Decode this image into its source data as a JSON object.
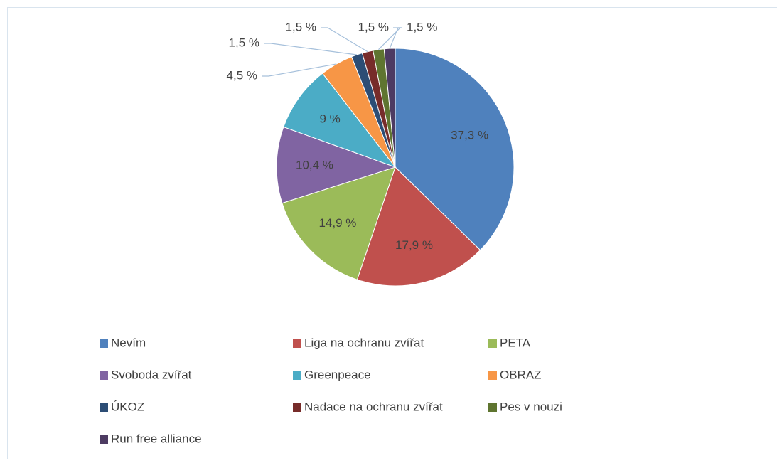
{
  "chart_data": {
    "type": "pie",
    "categories": [
      "Nevím",
      "Liga na ochranu zvířat",
      "PETA",
      "Svoboda zvířat",
      "Greenpeace",
      "OBRAZ",
      "ÚKOZ",
      "Nadace na ochranu zvířat",
      "Pes v nouzi",
      "Run free alliance"
    ],
    "values": [
      37.3,
      17.9,
      14.9,
      10.4,
      9,
      4.5,
      1.5,
      1.5,
      1.5,
      1.5
    ],
    "value_labels": [
      "37,3 %",
      "17,9 %",
      "14,9 %",
      "10,4 %",
      "9 %",
      "4,5 %",
      "1,5 %",
      "1,5 %",
      "1,5 %",
      "1,5 %"
    ],
    "colors": [
      "#4f81bd",
      "#c0504d",
      "#9bbb59",
      "#8064a2",
      "#4bacc6",
      "#f79646",
      "#2c4d75",
      "#772c2a",
      "#5f7530",
      "#4d3b62"
    ],
    "legend": "bottom"
  }
}
